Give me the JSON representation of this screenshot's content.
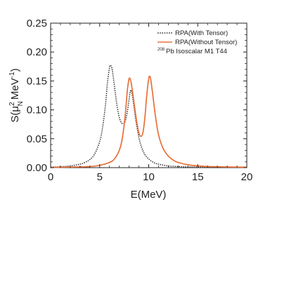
{
  "chart_data": {
    "type": "line",
    "xlabel": "E(MeV)",
    "ylabel": {
      "prefix": "S(",
      "mu": "μ",
      "exp2": "2",
      "sub": "N",
      "unit": "MeV",
      "exp": "-1",
      "suffix": ")"
    },
    "xlim": [
      0,
      20
    ],
    "ylim": [
      0,
      0.25
    ],
    "xticks": [
      "0",
      "5",
      "10",
      "15",
      "20"
    ],
    "yticks": [
      "0.00",
      "0.05",
      "0.10",
      "0.15",
      "0.20",
      "0.25"
    ],
    "grid": false,
    "legend_position": "top-right",
    "annotation": {
      "sup": "208",
      "text": "Pb  Isoscalar M1    T44"
    },
    "series": [
      {
        "name": "RPA(With Tensor)",
        "color": "#333333",
        "style": "dotted",
        "x": [
          0,
          1,
          2,
          3,
          3.5,
          4,
          4.5,
          5,
          5.3,
          5.6,
          5.8,
          6.0,
          6.1,
          6.25,
          6.4,
          6.6,
          6.8,
          7.0,
          7.2,
          7.4,
          7.6,
          7.8,
          8.0,
          8.15,
          8.3,
          8.5,
          8.7,
          9.0,
          9.3,
          9.6,
          10,
          10.5,
          11,
          12,
          13,
          14,
          15,
          16,
          17,
          18,
          19,
          20
        ],
        "y": [
          0.001,
          0.0015,
          0.003,
          0.006,
          0.009,
          0.014,
          0.024,
          0.045,
          0.07,
          0.11,
          0.148,
          0.173,
          0.177,
          0.172,
          0.155,
          0.128,
          0.104,
          0.087,
          0.078,
          0.076,
          0.08,
          0.095,
          0.118,
          0.134,
          0.127,
          0.105,
          0.08,
          0.052,
          0.034,
          0.023,
          0.015,
          0.009,
          0.006,
          0.003,
          0.002,
          0.0013,
          0.001,
          0.0008,
          0.0006,
          0.0005,
          0.0004,
          0.0003
        ]
      },
      {
        "name": "RPA(Without Tensor)",
        "color": "#e8703a",
        "style": "solid",
        "x": [
          0,
          2,
          4,
          5,
          6,
          6.5,
          7.0,
          7.3,
          7.6,
          7.8,
          7.95,
          8.05,
          8.2,
          8.4,
          8.6,
          8.8,
          9.0,
          9.2,
          9.4,
          9.6,
          9.8,
          10.0,
          10.1,
          10.2,
          10.4,
          10.6,
          10.8,
          11.0,
          11.3,
          11.6,
          12,
          12.5,
          13,
          14,
          15,
          16,
          17,
          18,
          19,
          20
        ],
        "y": [
          0.0003,
          0.001,
          0.002,
          0.004,
          0.009,
          0.015,
          0.03,
          0.05,
          0.09,
          0.13,
          0.15,
          0.155,
          0.148,
          0.125,
          0.1,
          0.077,
          0.06,
          0.054,
          0.06,
          0.085,
          0.125,
          0.154,
          0.158,
          0.153,
          0.128,
          0.1,
          0.076,
          0.057,
          0.04,
          0.029,
          0.02,
          0.013,
          0.009,
          0.005,
          0.003,
          0.002,
          0.0016,
          0.0012,
          0.001,
          0.0008
        ]
      }
    ]
  }
}
